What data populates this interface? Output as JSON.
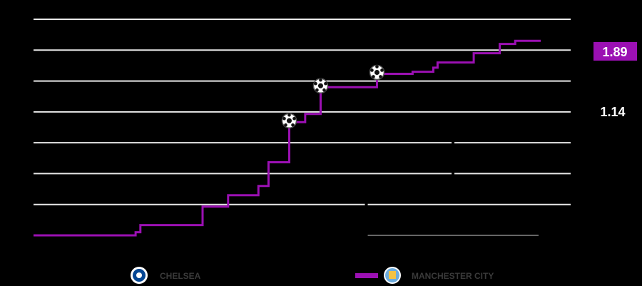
{
  "chart_data": {
    "type": "line",
    "step": true,
    "xlim": [
      0,
      95.4
    ],
    "ylim": [
      0,
      2.1
    ],
    "y_gridlines": [
      0.3,
      0.6,
      0.9,
      1.2,
      1.5,
      1.8,
      2.1
    ],
    "grid": true,
    "legend_placement": "bottom",
    "series": [
      {
        "name": "CHELSEA",
        "color": "#000000",
        "final_label": "1.14",
        "points": [
          [
            0,
            0
          ],
          [
            62.6,
            0.4
          ],
          [
            78.9,
            1.14
          ],
          [
            95.4,
            1.14
          ]
        ],
        "goals": []
      },
      {
        "name": "MANCHESTER CITY",
        "color": "#9b10b3",
        "final_label": "1.89",
        "points": [
          [
            0,
            0
          ],
          [
            19.2,
            0.03
          ],
          [
            20.1,
            0.1
          ],
          [
            31.8,
            0.28
          ],
          [
            36.6,
            0.39
          ],
          [
            42.3,
            0.48
          ],
          [
            44.2,
            0.71
          ],
          [
            48.1,
            1.1
          ],
          [
            51.1,
            1.18
          ],
          [
            54.0,
            1.44
          ],
          [
            64.6,
            1.57
          ],
          [
            71.3,
            1.59
          ],
          [
            75.2,
            1.63
          ],
          [
            76.0,
            1.68
          ],
          [
            82.8,
            1.77
          ],
          [
            87.7,
            1.86
          ],
          [
            90.6,
            1.89
          ],
          [
            95.4,
            1.89
          ]
        ],
        "goals": [
          [
            48.1,
            1.1
          ],
          [
            54.0,
            1.44
          ],
          [
            64.6,
            1.57
          ]
        ]
      }
    ]
  },
  "legend": {
    "chelsea": {
      "label": "CHELSEA",
      "icon": "chelsea-crest-icon"
    },
    "city": {
      "label": "MANCHESTER CITY",
      "icon": "man-city-crest-icon"
    }
  },
  "labels": {
    "city_total": "1.89",
    "chelsea_total": "1.14"
  },
  "colors": {
    "city": "#9b10b3",
    "grid": "#e8e8e8",
    "legend_text": "#3a3a3a"
  }
}
